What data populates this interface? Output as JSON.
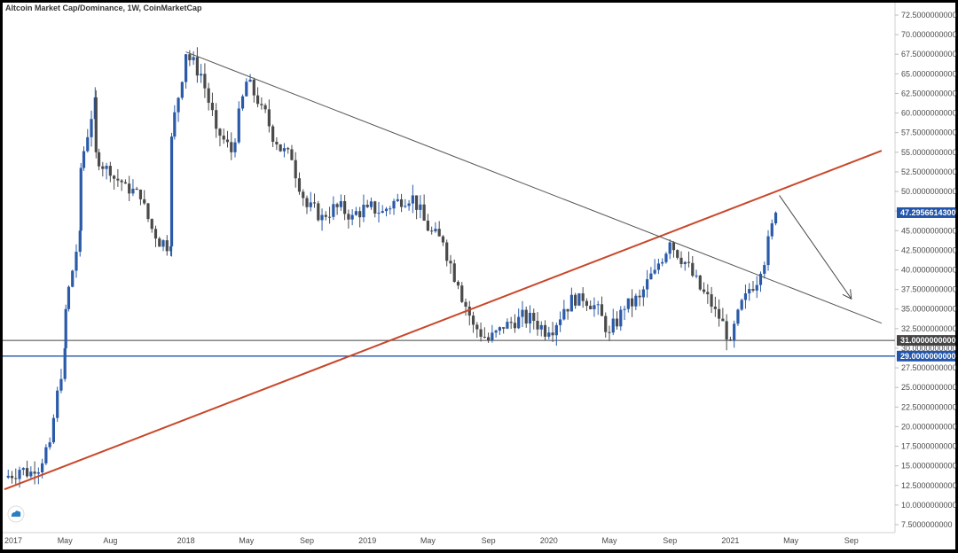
{
  "title": "Altcoin Market Cap/Dominance, 1W, CoinMarketCap",
  "colors": {
    "bull": "#2a5aa8",
    "bear": "#4a4a4a",
    "trend_up": "#c8472a",
    "trend_down": "#555555",
    "support_grey": "#444444",
    "support_blue": "#2255aa",
    "price_badge": "#2255aa",
    "badge_31": "#444444",
    "badge_29": "#2255aa"
  },
  "icons": {
    "logo": "tradingview-cloud-icon"
  },
  "chart_data": {
    "type": "candlestick",
    "title": "Altcoin Market Cap/Dominance, 1W, CoinMarketCap",
    "y_axis": {
      "ticks": [
        "72.5000000000",
        "70.0000000000",
        "67.5000000000",
        "65.0000000000",
        "62.5000000000",
        "60.0000000000",
        "57.5000000000",
        "55.0000000000",
        "52.5000000000",
        "50.0000000000",
        "47.5000000000",
        "45.0000000000",
        "42.5000000000",
        "40.0000000000",
        "37.5000000000",
        "35.0000000000",
        "32.5000000000",
        "30.0000000000",
        "27.5000000000",
        "25.0000000000",
        "22.5000000000",
        "20.0000000000",
        "17.5000000000",
        "15.0000000000",
        "12.5000000000",
        "10.0000000000",
        "7.5000000000"
      ],
      "range": [
        6.5,
        74
      ]
    },
    "x_axis": {
      "ticks": [
        "2017",
        "May",
        "Aug",
        "2018",
        "May",
        "Sep",
        "2019",
        "May",
        "Sep",
        "2020",
        "May",
        "Sep",
        "2021",
        "May",
        "Sep"
      ],
      "range": [
        "2017-01",
        "2021-11"
      ]
    },
    "current_price_label": "47.2956614300",
    "horizontal_lines": [
      {
        "label": "31.0000000000",
        "value": 31
      },
      {
        "label": "29.0000000000",
        "value": 29
      }
    ],
    "trendlines": [
      {
        "name": "rising-support",
        "from": [
          "2017-01",
          12.0
        ],
        "to": [
          "2021-11",
          55.2
        ]
      },
      {
        "name": "falling-resistance",
        "from": [
          "2018-01",
          67.8
        ],
        "to": [
          "2021-11",
          33.2
        ]
      }
    ],
    "arrow": {
      "from": [
        "2021-04",
        49.5
      ],
      "to": [
        "2021-09",
        36.3
      ]
    },
    "close_series": [
      [
        "2017-01",
        13.5
      ],
      [
        "2017-02",
        14.5
      ],
      [
        "2017-03",
        14.0
      ],
      [
        "2017-04",
        18.0
      ],
      [
        "2017-05",
        30.0
      ],
      [
        "2017-05",
        35.0
      ],
      [
        "2017-06",
        45.0
      ],
      [
        "2017-06",
        53.0
      ],
      [
        "2017-07",
        62.0
      ],
      [
        "2017-07",
        55.0
      ],
      [
        "2017-08",
        52.0
      ],
      [
        "2017-09",
        51.0
      ],
      [
        "2017-10",
        49.0
      ],
      [
        "2017-11",
        44.0
      ],
      [
        "2017-12",
        43.0
      ],
      [
        "2017-12",
        57.0
      ],
      [
        "2018-01",
        67.5
      ],
      [
        "2018-02",
        65.0
      ],
      [
        "2018-03",
        58.0
      ],
      [
        "2018-04",
        55.0
      ],
      [
        "2018-05",
        64.0
      ],
      [
        "2018-06",
        61.0
      ],
      [
        "2018-07",
        56.0
      ],
      [
        "2018-08",
        54.0
      ],
      [
        "2018-09",
        48.0
      ],
      [
        "2018-10",
        47.0
      ],
      [
        "2018-11",
        48.0
      ],
      [
        "2018-12",
        47.0
      ],
      [
        "2019-01",
        48.0
      ],
      [
        "2019-02",
        47.5
      ],
      [
        "2019-03",
        49.0
      ],
      [
        "2019-04",
        49.5
      ],
      [
        "2019-05",
        45.0
      ],
      [
        "2019-06",
        43.5
      ],
      [
        "2019-07",
        38.0
      ],
      [
        "2019-08",
        33.0
      ],
      [
        "2019-09",
        31.0
      ],
      [
        "2019-10",
        32.5
      ],
      [
        "2019-11",
        34.0
      ],
      [
        "2019-12",
        33.5
      ],
      [
        "2020-01",
        32.0
      ],
      [
        "2020-02",
        35.0
      ],
      [
        "2020-03",
        37.0
      ],
      [
        "2020-04",
        35.5
      ],
      [
        "2020-05",
        32.0
      ],
      [
        "2020-06",
        35.0
      ],
      [
        "2020-07",
        36.5
      ],
      [
        "2020-08",
        40.0
      ],
      [
        "2020-09",
        43.5
      ],
      [
        "2020-10",
        41.0
      ],
      [
        "2020-11",
        37.5
      ],
      [
        "2020-12",
        35.0
      ],
      [
        "2021-01",
        31.0
      ],
      [
        "2021-02",
        37.0
      ],
      [
        "2021-03",
        39.5
      ],
      [
        "2021-04",
        47.3
      ]
    ]
  }
}
